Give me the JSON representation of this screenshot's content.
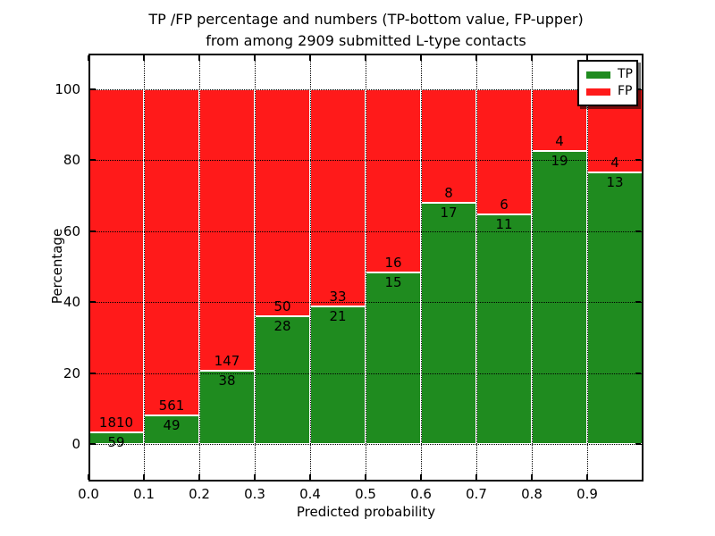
{
  "figure": {
    "title_line1": "TP /FP percentage and numbers (TP-bottom value, FP-upper)",
    "title_line2": "from among 2909 submitted L-type contacts"
  },
  "chart_data": {
    "type": "bar",
    "variant": "stacked-100-percent",
    "title": "TP /FP percentage and numbers (TP-bottom value, FP-upper)\nfrom among 2909 submitted L-type contacts",
    "xlabel": "Predicted probability",
    "ylabel": "Percentage",
    "total_submitted_contacts": 2909,
    "bin_width": 0.1,
    "categories": [
      "0.0",
      "0.1",
      "0.2",
      "0.3",
      "0.4",
      "0.5",
      "0.6",
      "0.7",
      "0.8",
      "0.9"
    ],
    "x_tick_labels": [
      "0.0",
      "0.1",
      "0.2",
      "0.3",
      "0.4",
      "0.5",
      "0.6",
      "0.7",
      "0.8",
      "0.9"
    ],
    "y_tick_values": [
      0,
      20,
      40,
      60,
      80,
      100
    ],
    "y_tick_labels": [
      "0",
      "20",
      "40",
      "60",
      "80",
      "100"
    ],
    "xlim": [
      0.0,
      1.0
    ],
    "ylim": [
      -10.6,
      110.1
    ],
    "grid": "dotted black, horizontal and vertical",
    "legend": {
      "position": "upper-right",
      "entries": [
        "TP",
        "FP"
      ]
    },
    "series": [
      {
        "name": "TP",
        "color": "#1f8b1f",
        "counts": [
          59,
          49,
          38,
          28,
          21,
          15,
          17,
          11,
          19,
          13
        ],
        "percent": [
          3.16,
          8.03,
          20.54,
          35.9,
          38.89,
          48.39,
          68.0,
          64.71,
          82.61,
          76.47
        ]
      },
      {
        "name": "FP",
        "color": "#ff1a1a",
        "counts": [
          1810,
          561,
          147,
          50,
          33,
          16,
          8,
          6,
          4,
          4
        ],
        "percent": [
          96.84,
          91.97,
          79.46,
          64.1,
          61.11,
          51.61,
          32.0,
          35.29,
          17.39,
          23.53
        ]
      }
    ]
  }
}
